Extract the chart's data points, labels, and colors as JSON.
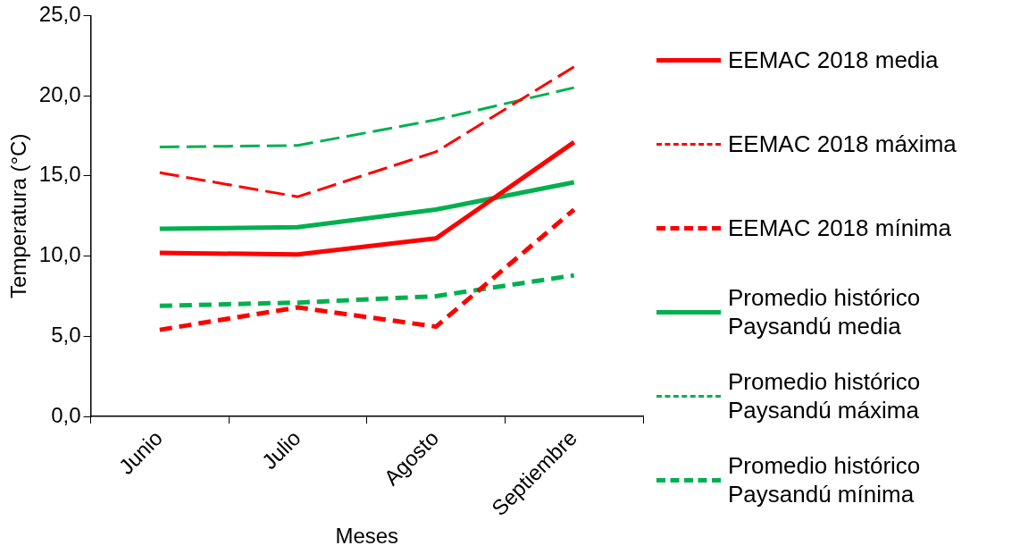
{
  "chart_data": {
    "type": "line",
    "xlabel": "Meses",
    "ylabel": "Temperatura (°C)",
    "categories": [
      "Junio",
      "Julio",
      "Agosto",
      "Septiembre"
    ],
    "ylim": [
      0,
      25
    ],
    "yticks": [
      {
        "value": 0,
        "label": "0,0"
      },
      {
        "value": 5,
        "label": "5,0"
      },
      {
        "value": 10,
        "label": "10,0"
      },
      {
        "value": 15,
        "label": "15,0"
      },
      {
        "value": 20,
        "label": "20,0"
      },
      {
        "value": 25,
        "label": "25,0"
      }
    ],
    "grid": false,
    "legend": "right",
    "marker": "none",
    "series": [
      {
        "name": "EEMAC 2018 media",
        "color": "#ff0000",
        "line_style": "solid",
        "values": [
          10.2,
          10.1,
          11.1,
          17.1
        ]
      },
      {
        "name": "EEMAC 2018 máxima",
        "color": "#ff0000",
        "line_style": "dashed",
        "values": [
          15.2,
          13.7,
          16.5,
          21.8
        ]
      },
      {
        "name": "EEMAC 2018 mínima",
        "color": "#ff0000",
        "line_style": "dotted",
        "values": [
          5.4,
          6.8,
          5.6,
          12.9
        ]
      },
      {
        "name": "Promedio histórico Paysandú media",
        "color": "#00b050",
        "line_style": "solid",
        "values": [
          11.7,
          11.8,
          12.9,
          14.6
        ]
      },
      {
        "name": "Promedio histórico Paysandú máxima",
        "color": "#00b050",
        "line_style": "dashed",
        "values": [
          16.8,
          16.9,
          18.5,
          20.5
        ]
      },
      {
        "name": "Promedio histórico Paysandú mínima",
        "color": "#00b050",
        "line_style": "dotted",
        "values": [
          6.9,
          7.1,
          7.5,
          8.8
        ]
      }
    ]
  }
}
